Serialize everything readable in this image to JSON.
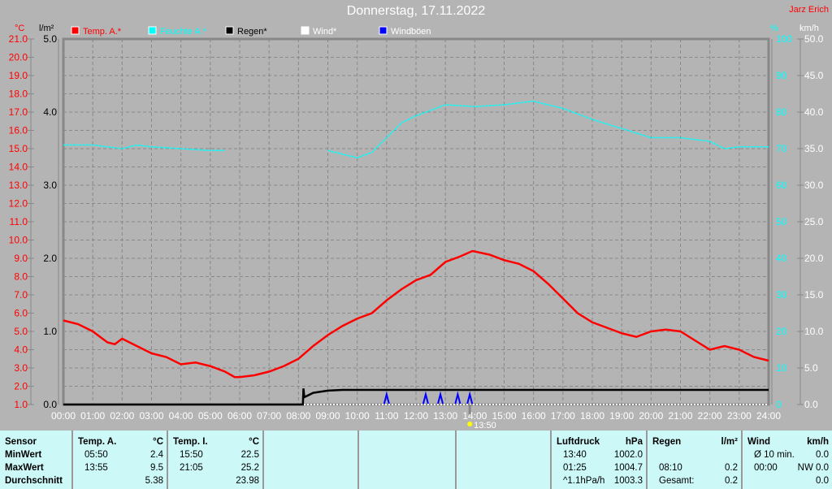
{
  "title": "Donnerstag, 17.11.2022",
  "author": "Jarz Erich",
  "marker_label": "13:50",
  "colors": {
    "temp": "#ff0000",
    "humidity": "#00ffff",
    "rain": "#000000",
    "wind": "#ffffff",
    "gusts": "#0000ff",
    "bg": "#b4b4b4"
  },
  "chart_data": {
    "type": "line",
    "title": "Donnerstag, 17.11.2022",
    "legend": [
      {
        "name": "Temp. A.*",
        "color": "#ff0000"
      },
      {
        "name": "Feuchte A.*",
        "color": "#00ffff"
      },
      {
        "name": "Regen*",
        "color": "#000000"
      },
      {
        "name": "Wind*",
        "color": "#ffffff"
      },
      {
        "name": "Windböen",
        "color": "#0000ff"
      }
    ],
    "axes": {
      "temp": {
        "unit": "°C",
        "range": [
          1,
          21
        ],
        "ticks": [
          "21.0",
          "20.0",
          "19.0",
          "18.0",
          "17.0",
          "16.0",
          "15.0",
          "14.0",
          "13.0",
          "12.0",
          "11.0",
          "10.0",
          "9.0",
          "8.0",
          "7.0",
          "6.0",
          "5.0",
          "4.0",
          "3.0",
          "2.0",
          "1.0"
        ]
      },
      "rain": {
        "unit": "l/m²",
        "range": [
          0,
          5
        ],
        "ticks": [
          "5.0",
          "4.0",
          "3.0",
          "2.0",
          "1.0",
          "0.0"
        ]
      },
      "humidity": {
        "unit": "%",
        "range": [
          0,
          100
        ],
        "ticks": [
          "100",
          "90",
          "80",
          "70",
          "60",
          "50",
          "40",
          "30",
          "20",
          "10",
          "0"
        ]
      },
      "wind": {
        "unit": "km/h",
        "range": [
          0,
          50
        ],
        "ticks": [
          "50.0",
          "45.0",
          "40.0",
          "35.0",
          "30.0",
          "25.0",
          "20.0",
          "15.0",
          "10.0",
          "5.0",
          "0.0"
        ]
      },
      "x": {
        "range": [
          0,
          24
        ],
        "ticks": [
          "00:00",
          "01:00",
          "02:00",
          "03:00",
          "04:00",
          "05:00",
          "06:00",
          "07:00",
          "08:00",
          "09:00",
          "10:00",
          "11:00",
          "12:00",
          "13:00",
          "14:00",
          "15:00",
          "16:00",
          "17:00",
          "18:00",
          "19:00",
          "20:00",
          "21:00",
          "22:00",
          "23:00",
          "24:00"
        ]
      }
    },
    "series": [
      {
        "name": "Temp. A.",
        "axis": "temp",
        "x": [
          0,
          0.5,
          1,
          1.5,
          1.75,
          2,
          2.5,
          3,
          3.5,
          4,
          4.5,
          5,
          5.5,
          5.83,
          6,
          6.5,
          7,
          7.5,
          8,
          8.5,
          9,
          9.5,
          10,
          10.5,
          11,
          11.5,
          12,
          12.5,
          13,
          13.5,
          13.92,
          14.5,
          15,
          15.5,
          16,
          16.5,
          17,
          17.5,
          18,
          18.5,
          19,
          19.5,
          20,
          20.5,
          21,
          21.5,
          22,
          22.5,
          23,
          23.5,
          24
        ],
        "y": [
          5.6,
          5.4,
          5.0,
          4.4,
          4.3,
          4.6,
          4.2,
          3.8,
          3.6,
          3.2,
          3.3,
          3.1,
          2.8,
          2.5,
          2.5,
          2.6,
          2.8,
          3.1,
          3.5,
          4.2,
          4.8,
          5.3,
          5.7,
          6.0,
          6.7,
          7.3,
          7.8,
          8.1,
          8.8,
          9.1,
          9.4,
          9.2,
          8.9,
          8.7,
          8.3,
          7.6,
          6.8,
          6.0,
          5.5,
          5.2,
          4.9,
          4.7,
          5.0,
          5.1,
          5.0,
          4.5,
          4.0,
          4.2,
          4.0,
          3.6,
          3.4
        ]
      },
      {
        "name": "Feuchte A.",
        "axis": "humidity",
        "x": [
          0,
          1,
          2,
          2.5,
          3,
          4,
          5,
          5.5,
          9,
          10,
          10.5,
          11,
          11.5,
          12,
          13,
          14,
          15,
          16,
          17,
          18,
          19,
          20,
          21,
          21.5,
          22,
          22.5,
          23,
          24
        ],
        "y": [
          71,
          71,
          70,
          71,
          70.5,
          70,
          69.5,
          69.5,
          69.5,
          67.5,
          69,
          73,
          77,
          79,
          82,
          81.5,
          82,
          83,
          81,
          78,
          75.5,
          73,
          73,
          72.5,
          72,
          70,
          70.5,
          70.5
        ],
        "gap_after_index": 7
      },
      {
        "name": "Regen",
        "axis": "rain",
        "x": [
          0,
          8.15,
          8.17,
          8.2,
          8.5,
          9,
          9.5,
          10,
          24
        ],
        "y": [
          0,
          0,
          0.22,
          0.1,
          0.16,
          0.19,
          0.2,
          0.2,
          0.2
        ]
      },
      {
        "name": "Wind",
        "axis": "wind",
        "x": [
          0,
          24
        ],
        "y": [
          0,
          0
        ]
      },
      {
        "name": "Windböen",
        "axis": "wind",
        "x": [
          11,
          12.33,
          12.83,
          13.42,
          13.83
        ],
        "y": [
          1.4,
          1.4,
          1.4,
          1.4,
          1.4
        ]
      }
    ]
  },
  "table": {
    "sensor": {
      "h": "Sensor",
      "rows": [
        "MinWert",
        "MaxWert",
        "Durchschnitt"
      ]
    },
    "temp_a": {
      "h": "Temp. A.",
      "u": "°C",
      "rows": [
        [
          "05:50",
          "2.4"
        ],
        [
          "13:55",
          "9.5"
        ],
        [
          "",
          "5.38"
        ]
      ]
    },
    "temp_i": {
      "h": "Temp. I.",
      "u": "°C",
      "rows": [
        [
          "15:50",
          "22.5"
        ],
        [
          "21:05",
          "25.2"
        ],
        [
          "",
          "23.98"
        ]
      ]
    },
    "luft": {
      "h": "Luftdruck",
      "u": "hPa",
      "rows": [
        [
          "13:40",
          "1002.0"
        ],
        [
          "01:25",
          "1004.7"
        ],
        [
          "^1.1hPa/h",
          "1003.3"
        ]
      ]
    },
    "regen": {
      "h": "Regen",
      "u": "l/m²",
      "rows": [
        [
          "",
          ""
        ],
        [
          "08:10",
          "0.2"
        ],
        [
          "Gesamt:",
          "0.2"
        ]
      ]
    },
    "wind": {
      "h": "Wind",
      "u": "km/h",
      "rows": [
        [
          "Ø 10 min.",
          "0.0"
        ],
        [
          "00:00",
          "NW 0.0"
        ],
        [
          "",
          "0.0"
        ]
      ]
    }
  }
}
